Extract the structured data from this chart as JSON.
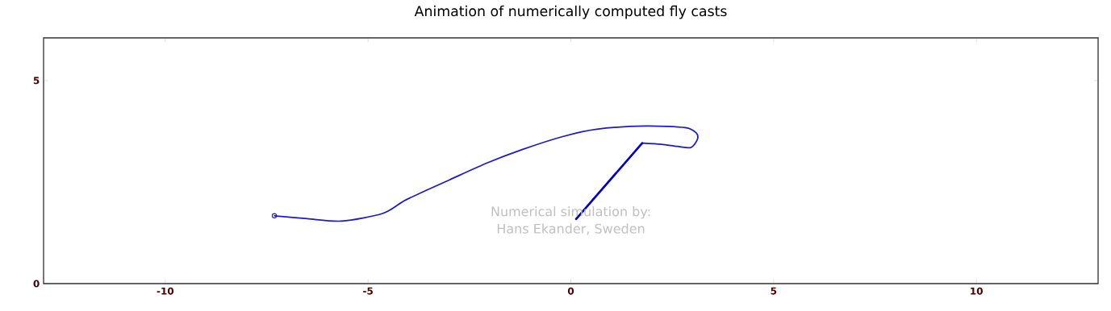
{
  "chart_data": {
    "type": "line",
    "title": "Animation of numerically computed fly casts",
    "xlim": [
      -13,
      13
    ],
    "ylim": [
      0,
      6.05
    ],
    "xticks": [
      -10,
      -5,
      0,
      5,
      10
    ],
    "yticks": [
      0,
      5
    ],
    "marker": "none",
    "series": [
      {
        "color": "#1a1acc",
        "x": [
          -7.31,
          -6.5,
          -5.65,
          -4.63,
          -4.05,
          -3.0,
          -2.09,
          -1.2,
          -0.2,
          0.64,
          1.83,
          2.82,
          3.09,
          3.12,
          2.96,
          2.62,
          2.23,
          1.76
        ],
        "values": [
          1.67,
          1.6,
          1.54,
          1.73,
          2.07,
          2.55,
          2.96,
          3.3,
          3.62,
          3.8,
          3.88,
          3.84,
          3.71,
          3.55,
          3.35,
          3.38,
          3.43,
          3.46
        ]
      },
      {
        "color": "#0000cc",
        "x": [
          1.76,
          0.13
        ],
        "values": [
          3.46,
          1.59
        ]
      },
      {
        "type": "scatter",
        "color": "#1a1acc",
        "marker": "circle",
        "x": [
          -7.31
        ],
        "values": [
          1.67
        ]
      }
    ],
    "annotations": [
      "Numerical simulation by:",
      "Hans Ekander, Sweden"
    ]
  }
}
